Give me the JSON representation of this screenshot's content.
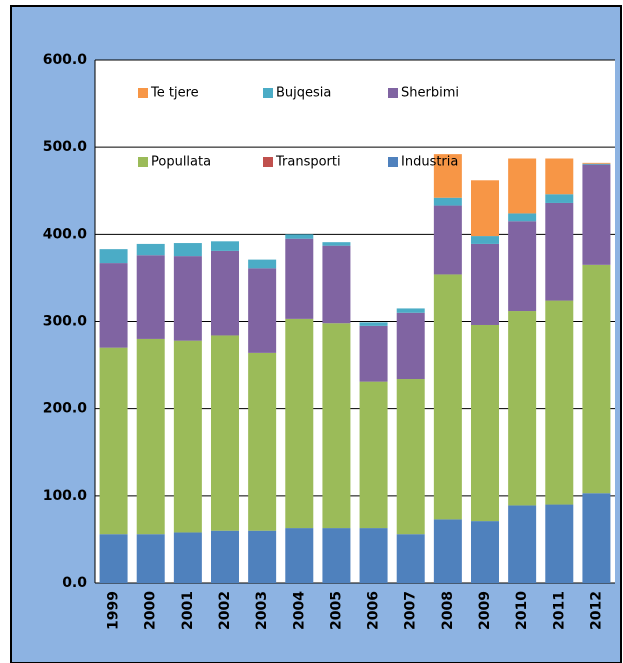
{
  "chart_data": {
    "type": "stacked_bar",
    "categories": [
      "1999",
      "2000",
      "2001",
      "2002",
      "2003",
      "2004",
      "2005",
      "2006",
      "2007",
      "2008",
      "2009",
      "2010",
      "2011",
      "2012"
    ],
    "series": [
      {
        "name": "Industria",
        "color": "#4f81bd",
        "values": [
          56,
          56,
          58,
          60,
          60,
          63,
          63,
          63,
          56,
          73,
          71,
          89,
          90,
          103
        ]
      },
      {
        "name": "Transporti",
        "color": "#c0504d",
        "values": [
          0,
          0,
          0,
          0,
          0,
          0,
          0,
          0,
          0,
          0,
          0,
          0,
          0,
          0
        ]
      },
      {
        "name": "Popullata",
        "color": "#9bbb59",
        "values": [
          214,
          224,
          220,
          224,
          204,
          240,
          235,
          168,
          178,
          281,
          225,
          223,
          234,
          262
        ]
      },
      {
        "name": "Sherbimi",
        "color": "#8064a2",
        "values": [
          97,
          96,
          97,
          97,
          97,
          92,
          89,
          64,
          76,
          79,
          93,
          103,
          112,
          115
        ]
      },
      {
        "name": "Bujqesia",
        "color": "#4bacc6",
        "values": [
          16,
          13,
          15,
          11,
          10,
          5,
          4,
          4,
          5,
          9,
          9,
          9,
          10,
          1
        ]
      },
      {
        "name": "Te tjere",
        "color": "#f79646",
        "values": [
          0,
          0,
          0,
          0,
          0,
          0,
          0,
          0,
          0,
          50,
          64,
          63,
          41,
          1
        ]
      }
    ],
    "ylim": [
      0,
      600
    ],
    "yticks": [
      {
        "value": 0,
        "label": "0.0"
      },
      {
        "value": 100,
        "label": "100.0"
      },
      {
        "value": 200,
        "label": "200.0"
      },
      {
        "value": 300,
        "label": "300.0"
      },
      {
        "value": 400,
        "label": "400.0"
      },
      {
        "value": 500,
        "label": "500.0"
      },
      {
        "value": 600,
        "label": "600.0"
      }
    ],
    "grid": true
  }
}
